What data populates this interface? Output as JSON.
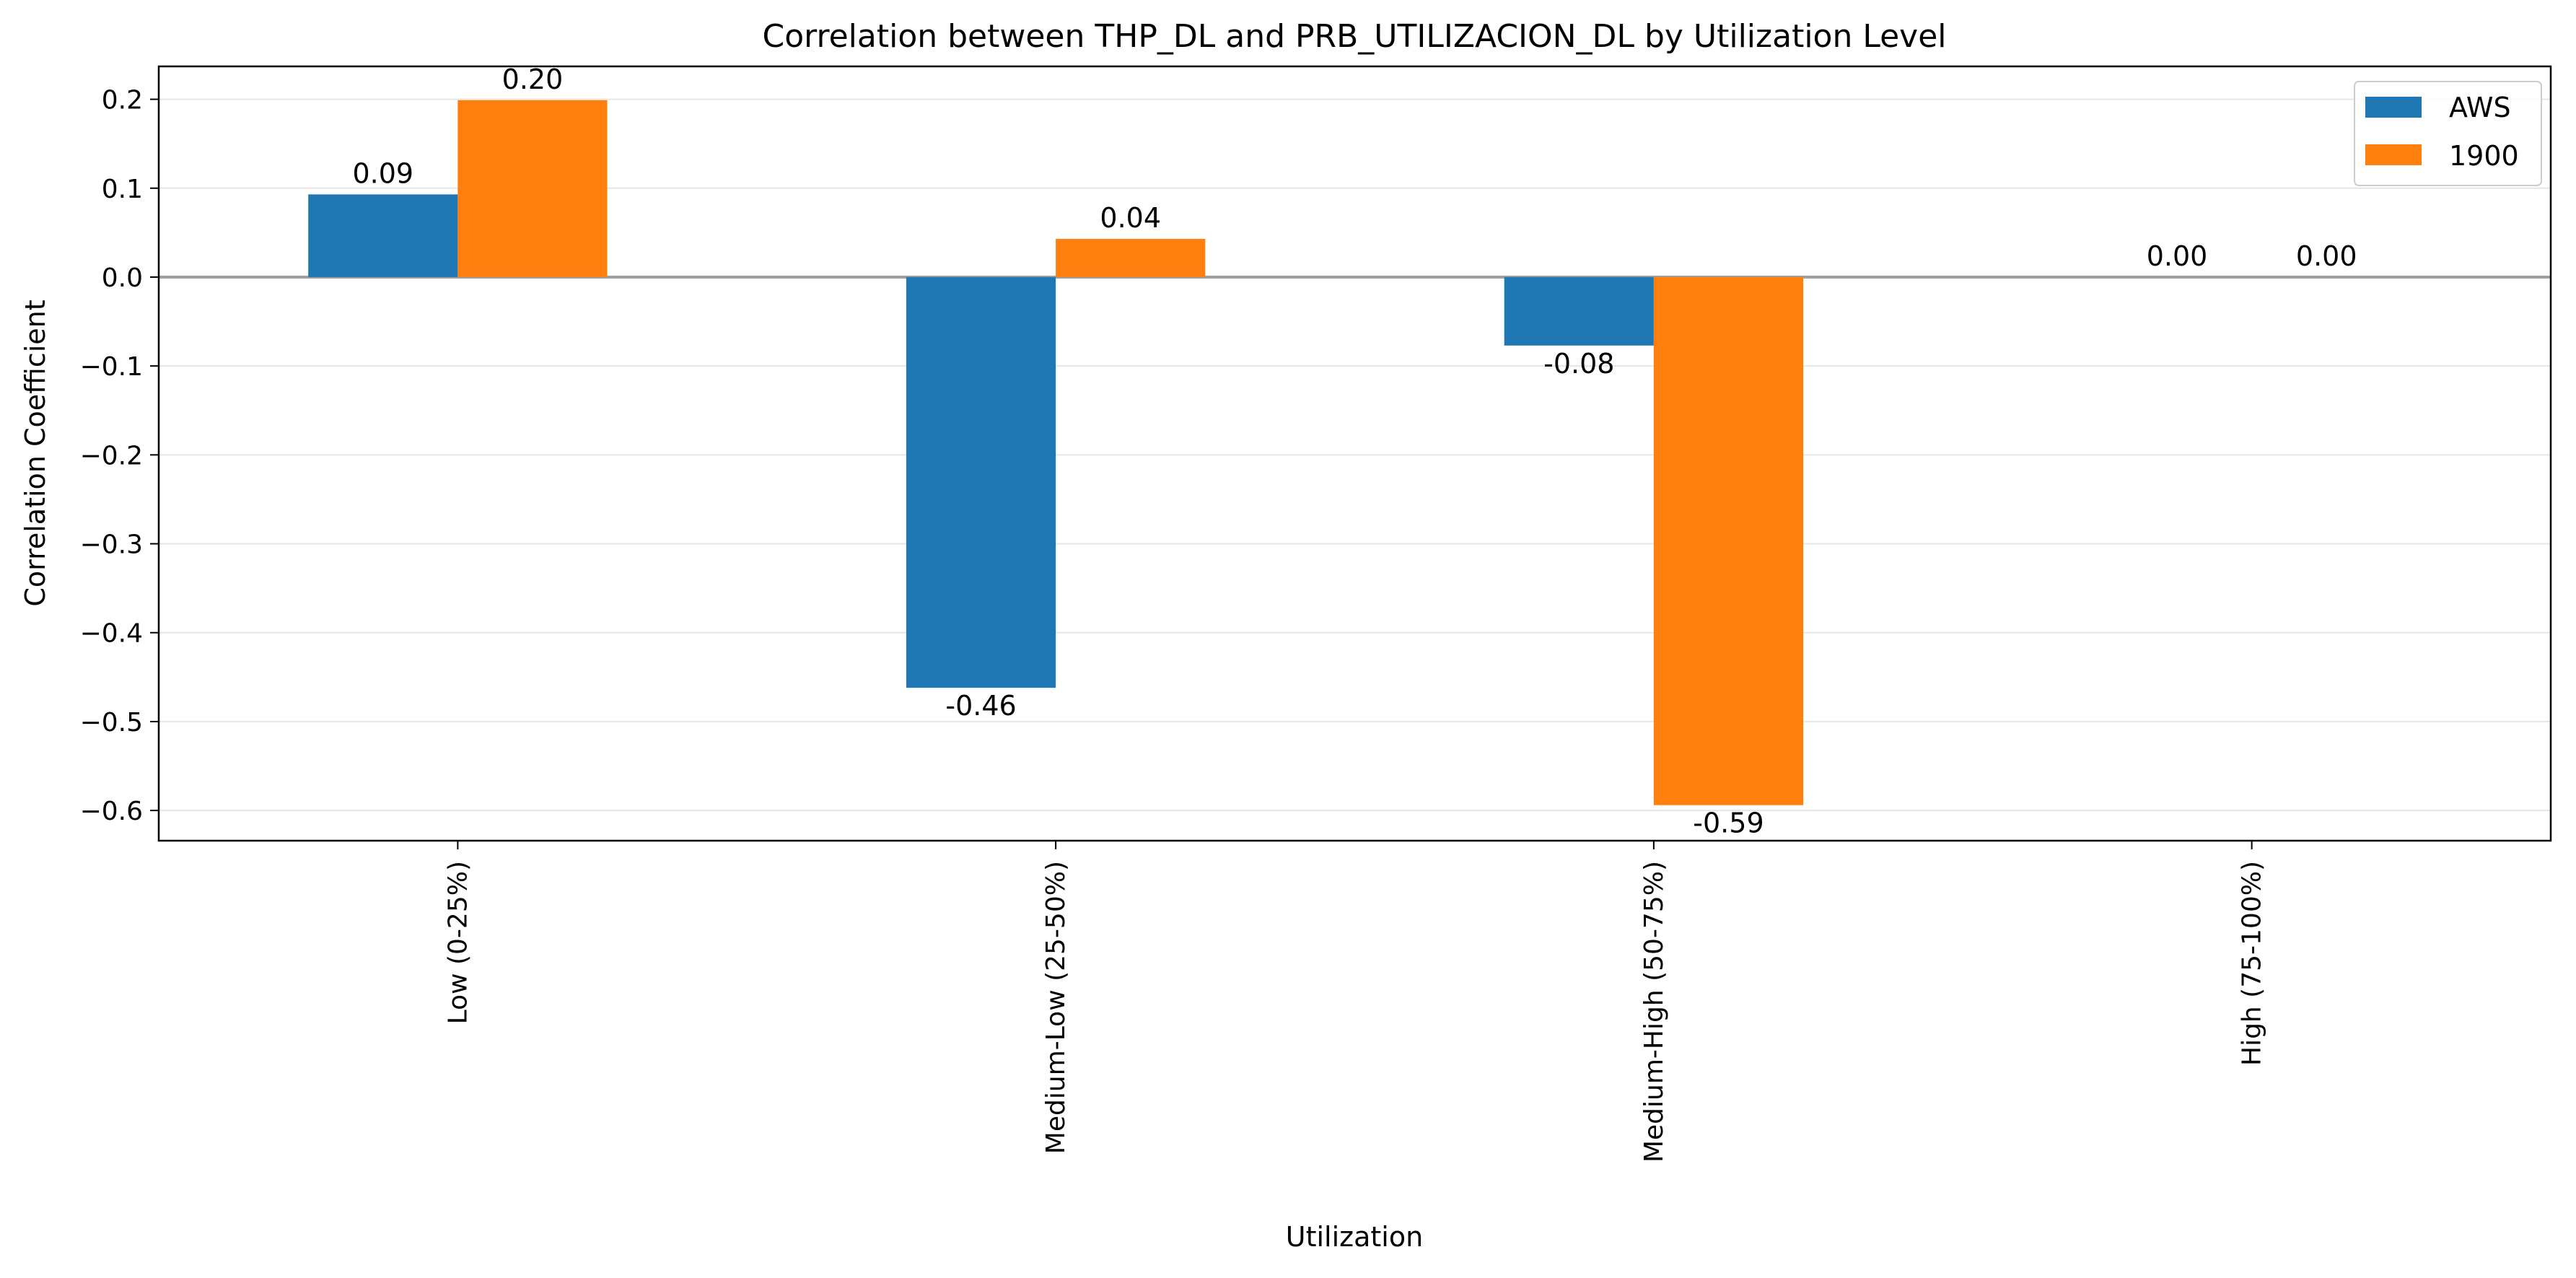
{
  "chart_data": {
    "type": "bar",
    "title": "Correlation between THP_DL and PRB_UTILIZACION_DL by Utilization Level",
    "xlabel": "Utilization",
    "ylabel": "Correlation Coefficient",
    "categories": [
      "Low (0-25%)",
      "Medium-Low (25-50%)",
      "Medium-High (50-75%)",
      "High (75-100%)"
    ],
    "series": [
      {
        "name": "AWS",
        "color": "#1f77b4",
        "values": [
          0.093,
          -0.462,
          -0.077,
          0.0
        ],
        "labels": [
          "0.09",
          "-0.46",
          "-0.08",
          "0.00"
        ]
      },
      {
        "name": "1900",
        "color": "#ff7f0e",
        "values": [
          0.199,
          0.043,
          -0.594,
          0.0
        ],
        "labels": [
          "0.20",
          "0.04",
          "-0.59",
          "0.00"
        ]
      }
    ],
    "ylim": [
      -0.634,
      0.237
    ],
    "yticks": [
      0.2,
      0.1,
      0.0,
      -0.1,
      -0.2,
      -0.3,
      -0.4,
      -0.5,
      -0.6
    ],
    "ytick_labels": [
      "0.2",
      "0.1",
      "0.0",
      "−0.1",
      "−0.2",
      "−0.3",
      "−0.4",
      "−0.5",
      "−0.6"
    ],
    "grid": "horizontal",
    "zero_line": true,
    "legend_position": "top-right"
  }
}
